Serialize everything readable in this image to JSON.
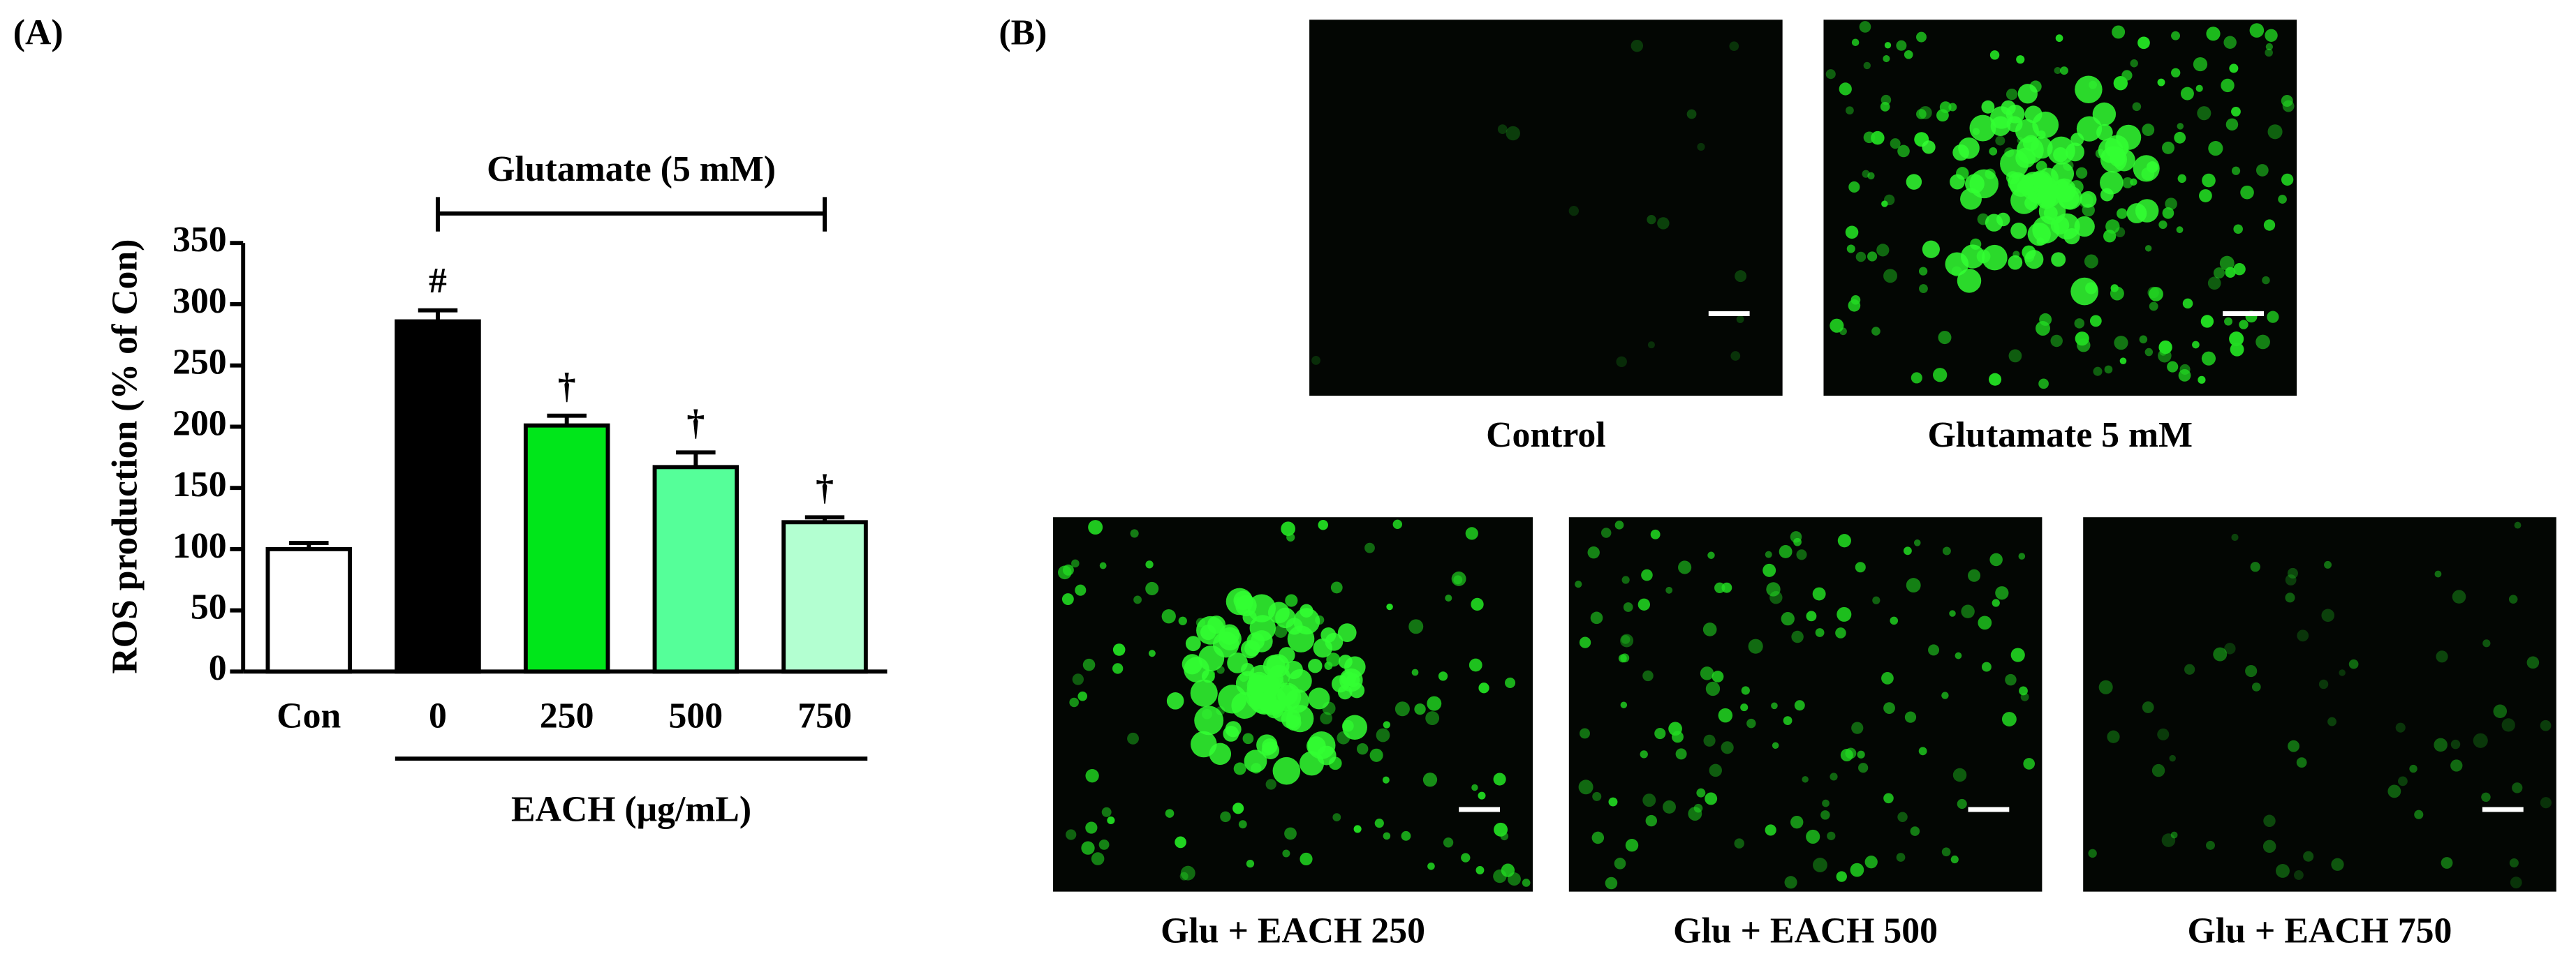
{
  "panel_labels": {
    "a": "(A)",
    "b": "(B)"
  },
  "chart_data": {
    "type": "bar",
    "y_label": "ROS production (% of Con)",
    "bracket_label": "Glutamate (5 mM)",
    "x_label": "EACH (μg/mL)",
    "categories": [
      "Con",
      "0",
      "250",
      "500",
      "750"
    ],
    "values": [
      100,
      286,
      201,
      167,
      122
    ],
    "errors": [
      5,
      9,
      8,
      12,
      4
    ],
    "colors": [
      "#ffffff",
      "#000000",
      "#00e61a",
      "#55ff99",
      "#b3ffd1"
    ],
    "value_annotations": [
      null,
      "#",
      "†",
      "†",
      "†"
    ],
    "ylim": [
      0,
      350
    ],
    "yticks": [
      0,
      50,
      100,
      150,
      200,
      250,
      300,
      350
    ]
  },
  "images": [
    {
      "caption": "Control"
    },
    {
      "caption": "Glutamate 5 mM"
    },
    {
      "caption": "Glu + EACH 250"
    },
    {
      "caption": "Glu + EACH 500"
    },
    {
      "caption": "Glu + EACH 750"
    }
  ]
}
